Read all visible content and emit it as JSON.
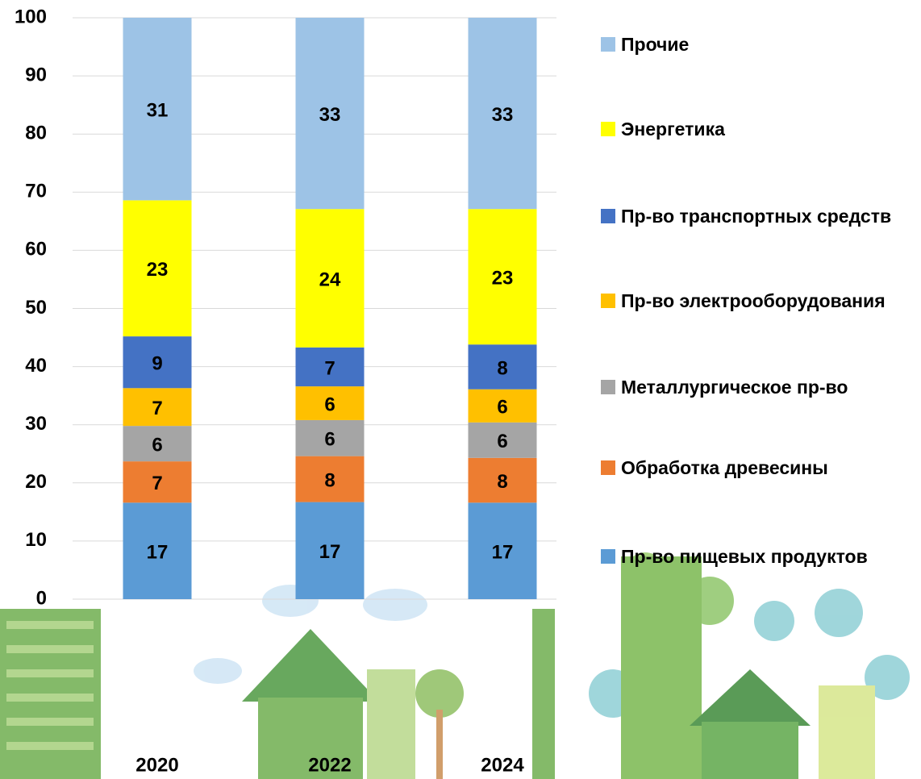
{
  "chart_data": {
    "type": "stacked_bar",
    "categories": [
      "2020",
      "2022",
      "2024"
    ],
    "series": [
      {
        "name": "Пр-во пищевых продуктов",
        "color": "#5b9bd5",
        "values": [
          16.6,
          16.7,
          16.6
        ],
        "value_labels": [
          "17",
          "17",
          "17"
        ]
      },
      {
        "name": "Обработка древесины",
        "color": "#ed7d31",
        "values": [
          7.1,
          7.9,
          7.7
        ],
        "value_labels": [
          "7",
          "8",
          "8"
        ]
      },
      {
        "name": "Металлургическое пр-во",
        "color": "#a5a5a5",
        "values": [
          6.1,
          6.2,
          6.1
        ],
        "value_labels": [
          "6",
          "6",
          "6"
        ]
      },
      {
        "name": "Пр-во электрооборудования",
        "color": "#ffc000",
        "values": [
          6.5,
          5.8,
          5.7
        ],
        "value_labels": [
          "7",
          "6",
          "6"
        ]
      },
      {
        "name": "Пр-во транспортных средств",
        "color": "#4472c4",
        "values": [
          8.9,
          6.7,
          7.7
        ],
        "value_labels": [
          "9",
          "7",
          "8"
        ]
      },
      {
        "name": "Энергетика",
        "color": "#ffff00",
        "values": [
          23.4,
          23.8,
          23.3
        ],
        "value_labels": [
          "23",
          "24",
          "23"
        ]
      },
      {
        "name": "Прочие",
        "color": "#9dc3e6",
        "values": [
          31.4,
          32.9,
          32.9
        ],
        "value_labels": [
          "31",
          "33",
          "33"
        ]
      }
    ],
    "ylim": [
      0,
      100
    ],
    "yticks": [
      0,
      10,
      20,
      30,
      40,
      50,
      60,
      70,
      80,
      90,
      100
    ],
    "grid": true
  }
}
